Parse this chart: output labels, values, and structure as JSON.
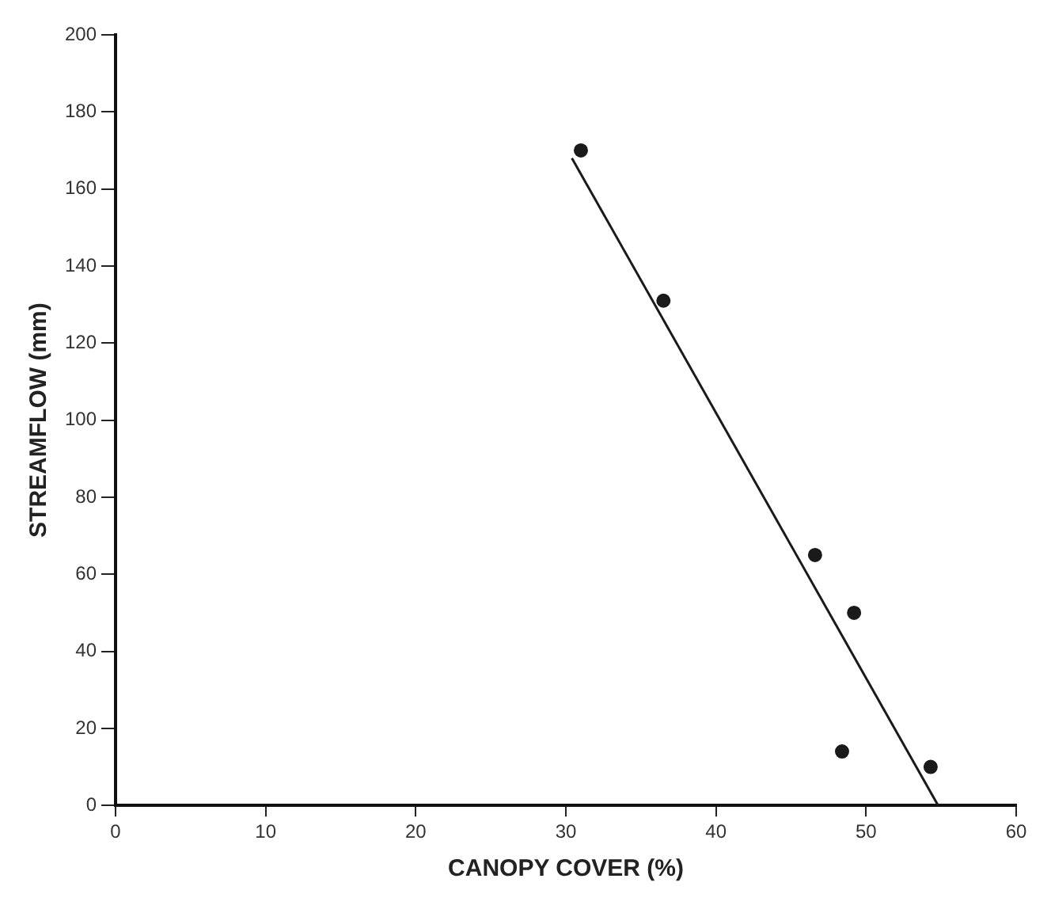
{
  "chart_data": {
    "type": "scatter",
    "xlabel": "CANOPY COVER (%)",
    "ylabel": "STREAMFLOW (mm)",
    "xlim": [
      0,
      60
    ],
    "xticks": [
      0,
      10,
      20,
      30,
      40,
      50,
      60
    ],
    "ylim": [
      0,
      200
    ],
    "yticks": [
      0,
      20,
      40,
      60,
      80,
      100,
      120,
      140,
      160,
      180,
      200
    ],
    "grid": false,
    "legend": false,
    "marker": "circle",
    "series": [
      {
        "type": "scatter",
        "color": "#1a1a1a",
        "x": [
          31,
          36.5,
          46.6,
          49.2,
          48.4,
          54.3
        ],
        "values": [
          170,
          131,
          65,
          50,
          14,
          10
        ]
      },
      {
        "type": "line",
        "color": "#1a1a1a",
        "x": [
          30.4,
          54.8
        ],
        "values": [
          168,
          0
        ],
        "marker": "none",
        "line_style": "solid"
      }
    ]
  }
}
